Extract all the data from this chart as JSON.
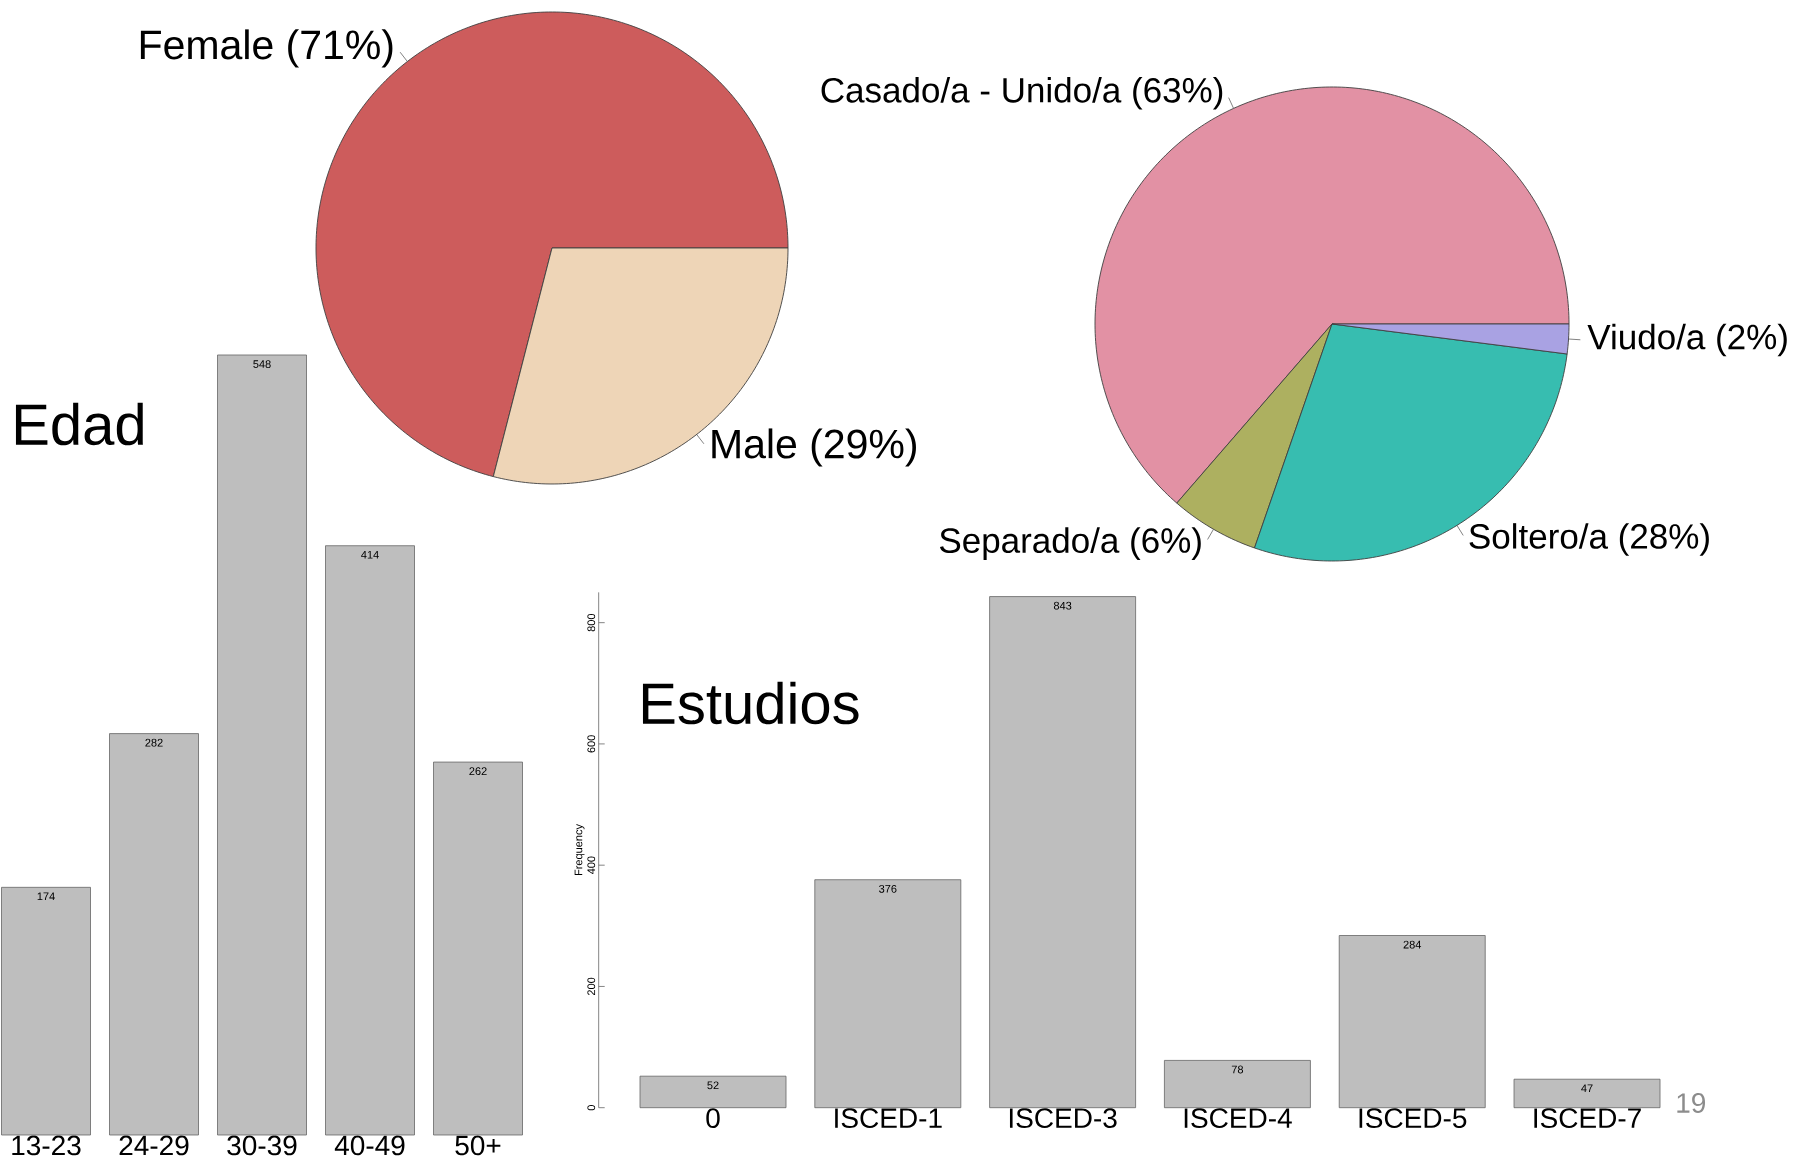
{
  "chart_data": [
    {
      "type": "pie",
      "categories": [
        "Female (71%)",
        "Male (29%)"
      ],
      "values": [
        71,
        29
      ],
      "colors": [
        "#cd5c5c",
        "#eed5b7"
      ]
    },
    {
      "type": "pie",
      "categories": [
        "Casado/a - Unido/a (63%)",
        "Separado/a (6%)",
        "Soltero/a (28%)",
        "Viudo/a (2%)"
      ],
      "values": [
        63,
        6,
        28,
        2
      ],
      "colors": [
        "#e291a4",
        "#adb060",
        "#37bdb0",
        "#a9a2e3"
      ]
    },
    {
      "type": "bar",
      "title": "Edad",
      "categories": [
        "13-23",
        "24-29",
        "30-39",
        "40-49",
        "50+"
      ],
      "values": [
        174,
        282,
        548,
        414,
        262
      ],
      "color": "#bebebe",
      "data_labels": true
    },
    {
      "type": "bar",
      "title": "Estudios",
      "ylabel": "Frequency",
      "categories": [
        "0",
        "ISCED-1",
        "ISCED-3",
        "ISCED-4",
        "ISCED-5",
        "ISCED-7"
      ],
      "values": [
        52,
        376,
        843,
        78,
        284,
        47
      ],
      "color": "#bebebe",
      "data_labels": true,
      "ylim": [
        0,
        850
      ],
      "yticks": [
        0,
        200,
        400,
        600,
        800
      ],
      "annotations": [
        "19"
      ]
    }
  ]
}
